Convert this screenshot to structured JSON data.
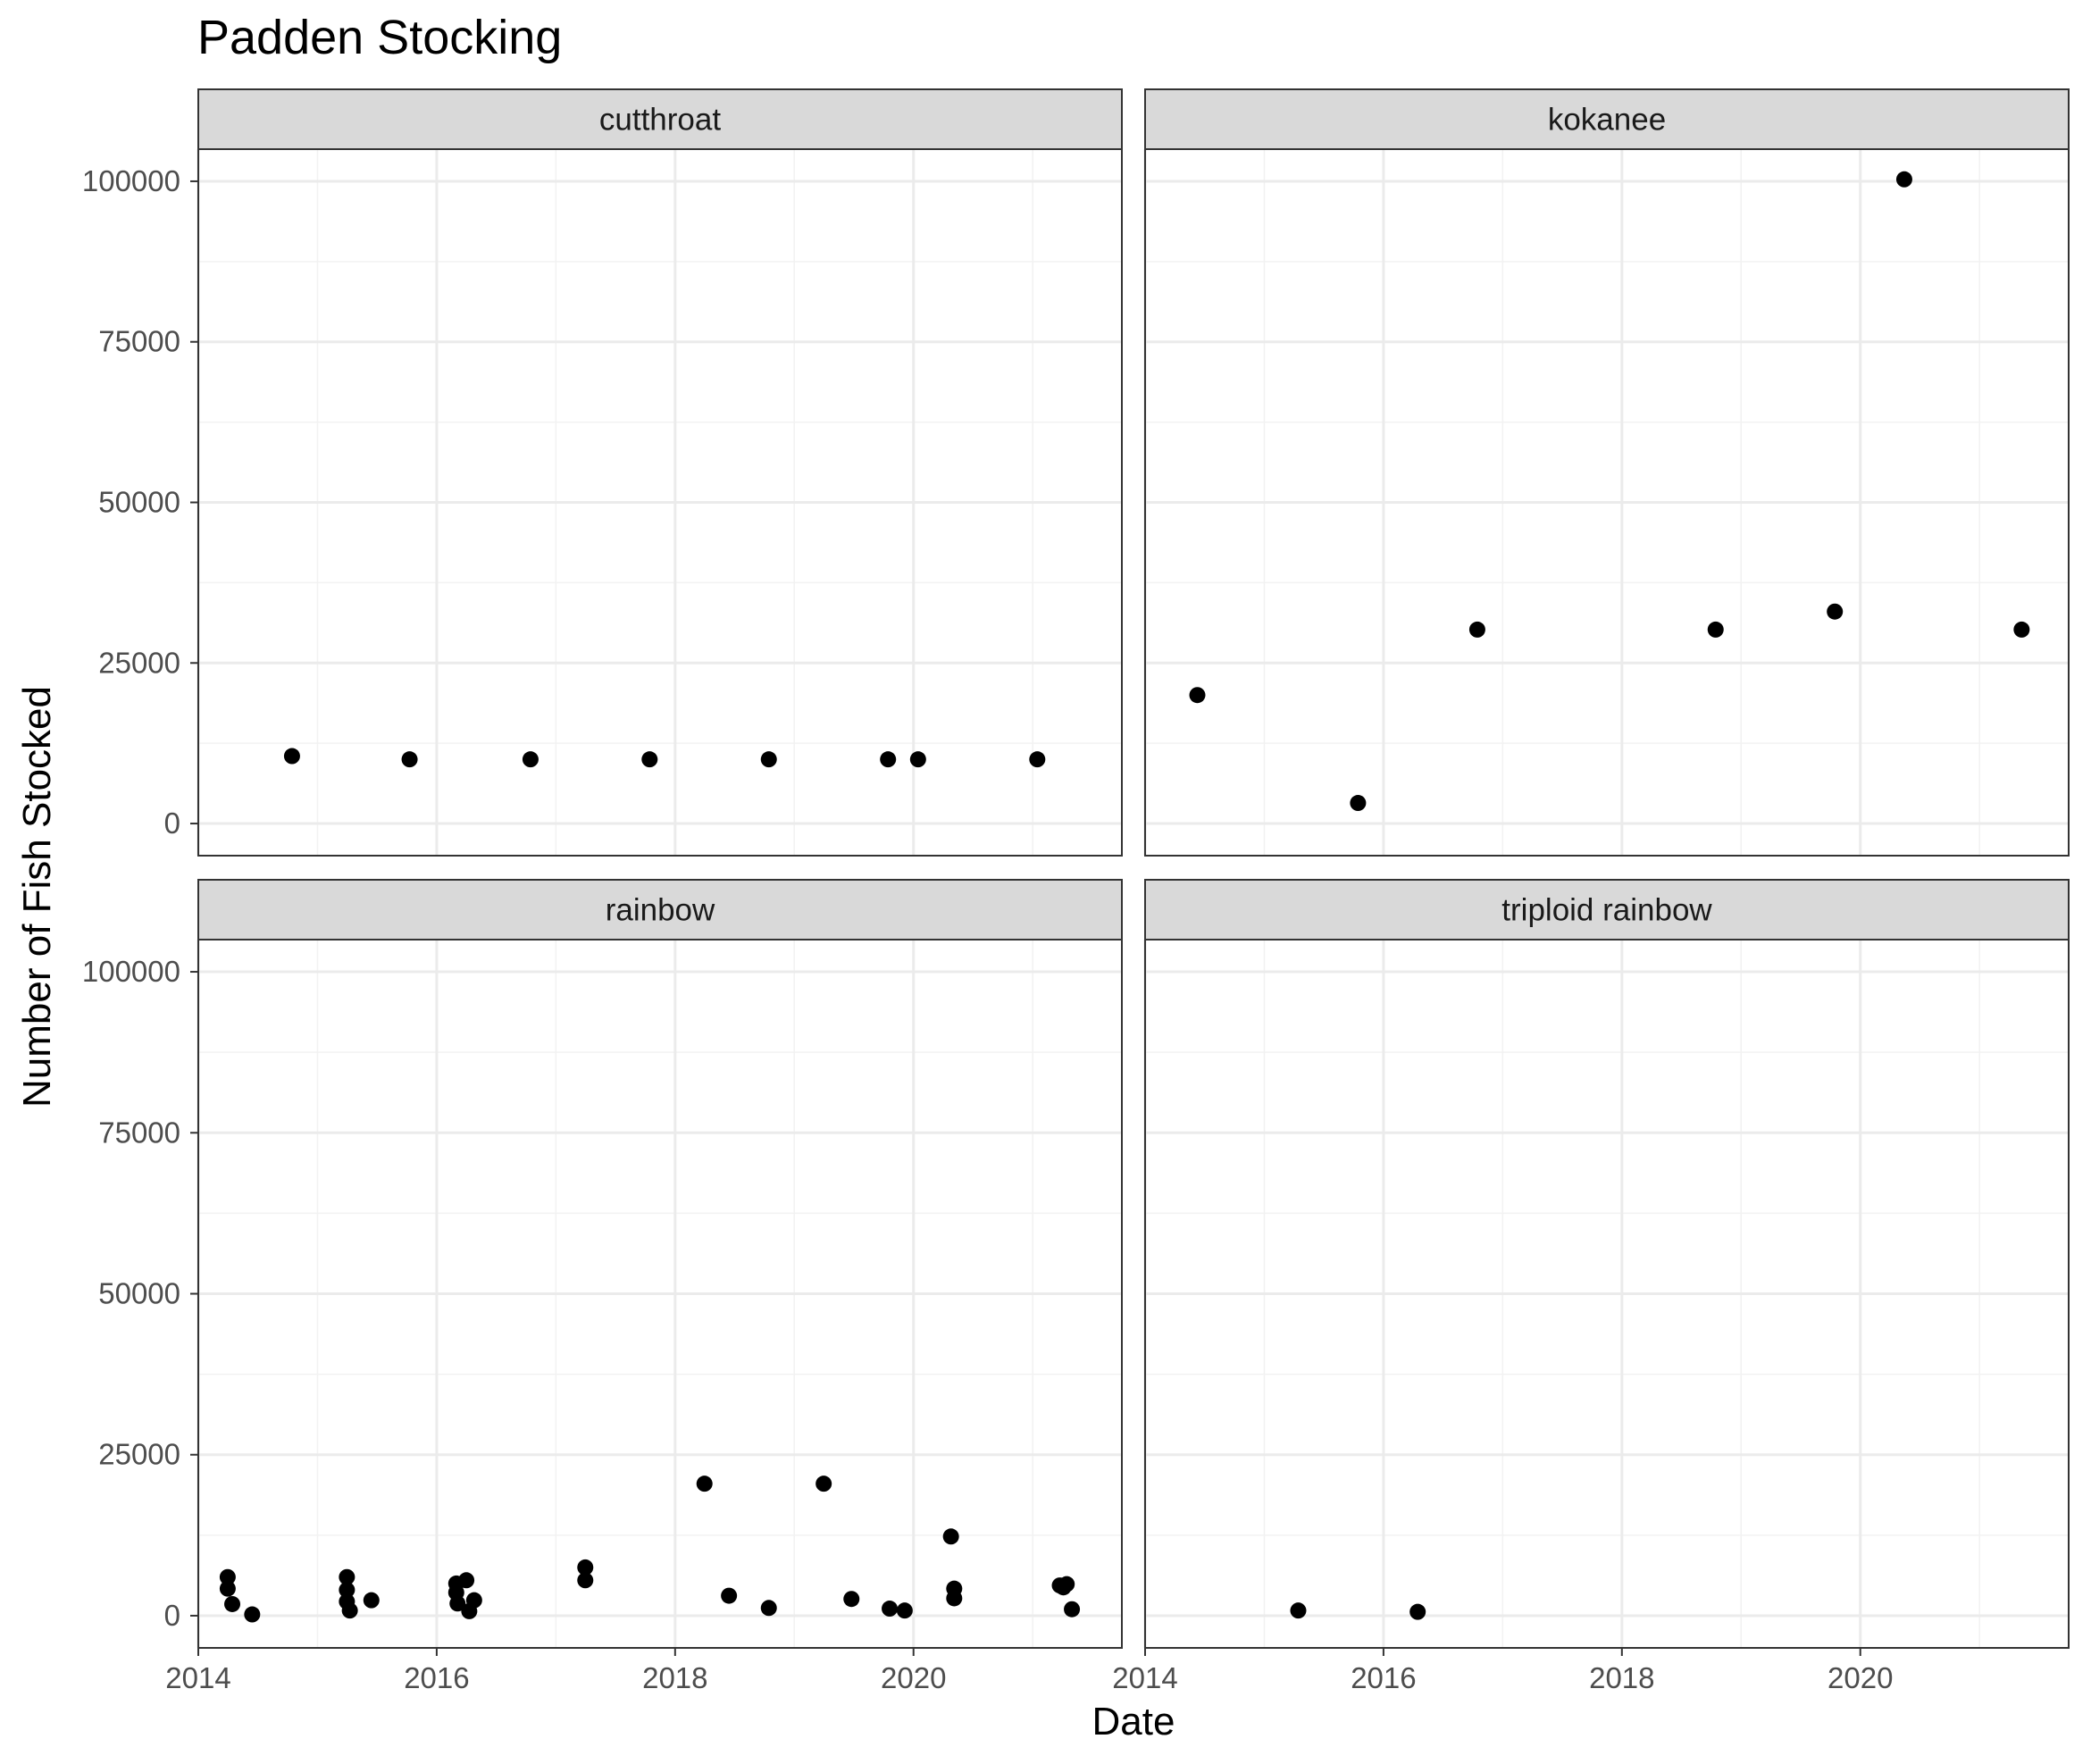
{
  "chart_data": {
    "type": "scatter",
    "title": "Padden Stocking",
    "xlabel": "Date",
    "ylabel": "Number of Fish Stocked",
    "x_ticks": [
      "2014",
      "2016",
      "2018",
      "2020"
    ],
    "y_ticks": [
      "0",
      "25000",
      "50000",
      "75000",
      "100000"
    ],
    "xlim": [
      "2014-01-01",
      "2021-10-01"
    ],
    "ylim": [
      -5000,
      105000
    ],
    "grid": true,
    "legend": "none",
    "point_color": "#000000",
    "facet_strip_color": "#d9d9d9",
    "facets": [
      {
        "name": "cutthroat",
        "points": [
          {
            "x": "2014-10-15",
            "y": 10500
          },
          {
            "x": "2015-10-10",
            "y": 10000
          },
          {
            "x": "2016-10-15",
            "y": 10000
          },
          {
            "x": "2017-10-15",
            "y": 10000
          },
          {
            "x": "2018-10-15",
            "y": 10000
          },
          {
            "x": "2019-10-15",
            "y": 10000
          },
          {
            "x": "2020-01-15",
            "y": 10000
          },
          {
            "x": "2021-01-15",
            "y": 10000
          }
        ]
      },
      {
        "name": "kokanee",
        "points": [
          {
            "x": "2014-06-10",
            "y": 20000
          },
          {
            "x": "2015-10-15",
            "y": 3200
          },
          {
            "x": "2016-10-15",
            "y": 30200
          },
          {
            "x": "2018-10-15",
            "y": 30200
          },
          {
            "x": "2019-10-15",
            "y": 33000
          },
          {
            "x": "2020-05-15",
            "y": 100300
          },
          {
            "x": "2021-05-10",
            "y": 30200
          }
        ]
      },
      {
        "name": "rainbow",
        "points": [
          {
            "x": "2014-04-01",
            "y": 6000
          },
          {
            "x": "2014-04-01",
            "y": 4200
          },
          {
            "x": "2014-04-15",
            "y": 1800
          },
          {
            "x": "2014-06-15",
            "y": 200
          },
          {
            "x": "2015-04-01",
            "y": 6000
          },
          {
            "x": "2015-04-01",
            "y": 4000
          },
          {
            "x": "2015-04-01",
            "y": 2200
          },
          {
            "x": "2015-04-10",
            "y": 800
          },
          {
            "x": "2015-06-15",
            "y": 2400
          },
          {
            "x": "2016-03-01",
            "y": 5000
          },
          {
            "x": "2016-03-01",
            "y": 3600
          },
          {
            "x": "2016-03-05",
            "y": 1900
          },
          {
            "x": "2016-04-01",
            "y": 5500
          },
          {
            "x": "2016-04-10",
            "y": 700
          },
          {
            "x": "2016-04-25",
            "y": 2400
          },
          {
            "x": "2017-04-01",
            "y": 7500
          },
          {
            "x": "2017-04-01",
            "y": 5500
          },
          {
            "x": "2018-04-01",
            "y": 20500
          },
          {
            "x": "2018-06-15",
            "y": 3100
          },
          {
            "x": "2018-10-15",
            "y": 1200
          },
          {
            "x": "2019-04-01",
            "y": 20500
          },
          {
            "x": "2019-06-25",
            "y": 2600
          },
          {
            "x": "2019-10-20",
            "y": 1100
          },
          {
            "x": "2019-12-05",
            "y": 800
          },
          {
            "x": "2020-04-25",
            "y": 12300
          },
          {
            "x": "2020-05-05",
            "y": 4200
          },
          {
            "x": "2020-05-05",
            "y": 2700
          },
          {
            "x": "2021-03-25",
            "y": 4700
          },
          {
            "x": "2021-04-05",
            "y": 4400
          },
          {
            "x": "2021-04-15",
            "y": 4900
          },
          {
            "x": "2021-05-01",
            "y": 1000
          }
        ]
      },
      {
        "name": "triploid rainbow",
        "points": [
          {
            "x": "2015-04-15",
            "y": 800
          },
          {
            "x": "2016-04-15",
            "y": 600
          }
        ]
      }
    ]
  }
}
